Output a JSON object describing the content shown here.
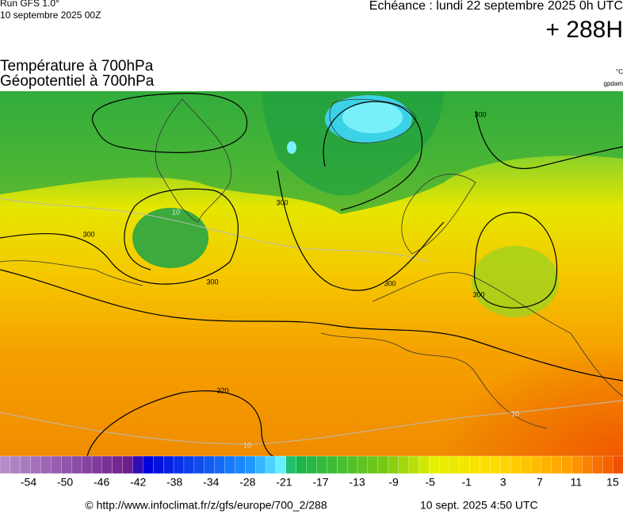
{
  "header": {
    "run": "Run GFS 1.0°",
    "run_date": "10 septembre 2025 00Z",
    "valid": "Echéance : lundi 22 septembre 2025 0h UTC",
    "lead": "+ 288H",
    "title_1": "Température à 700hPa",
    "title_2": "Géopotentiel à 700hPa",
    "unit_1": "°C",
    "unit_2": "gpdam"
  },
  "map": {
    "contour_labels": [
      "300",
      "300",
      "300",
      "300",
      "300",
      "300",
      "320"
    ],
    "isotherm_labels": [
      "10",
      "10",
      "10"
    ]
  },
  "colorbar": {
    "labels": [
      -54,
      -50,
      -46,
      -42,
      -38,
      -34,
      -28,
      -21,
      -17,
      -13,
      -9,
      -5,
      -1,
      3,
      7,
      11,
      15
    ]
  },
  "footer": {
    "source": "© http://www.infoclimat.fr/z/gfs/europe/700_2/288",
    "generated": "10 sept. 2025  4:50 UTC"
  }
}
